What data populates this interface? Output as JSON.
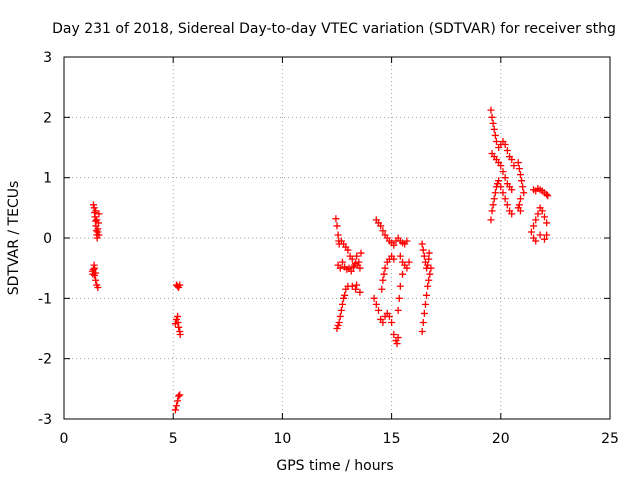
{
  "chart_data": {
    "type": "scatter",
    "title": "Day 231 of 2018, Sidereal Day-to-day VTEC variation (SDTVAR) for receiver sthg",
    "xlabel": "GPS time / hours",
    "ylabel": "SDTVAR / TECUs",
    "xlim": [
      0,
      25
    ],
    "ylim": [
      -3,
      3
    ],
    "xticks": [
      0,
      5,
      10,
      15,
      20,
      25
    ],
    "yticks": [
      -3,
      -2,
      -1,
      0,
      1,
      2,
      3
    ],
    "grid": true,
    "marker": "+",
    "color": "#ff0000",
    "series": [
      {
        "name": "SDTVAR",
        "points": [
          [
            1.35,
            0.55
          ],
          [
            1.38,
            0.5
          ],
          [
            1.4,
            0.42
          ],
          [
            1.42,
            0.35
          ],
          [
            1.44,
            0.28
          ],
          [
            1.46,
            0.2
          ],
          [
            1.48,
            0.12
          ],
          [
            1.5,
            0.05
          ],
          [
            1.52,
            0.0
          ],
          [
            1.55,
            0.1
          ],
          [
            1.58,
            0.25
          ],
          [
            1.6,
            0.4
          ],
          [
            1.45,
            0.45
          ],
          [
            1.5,
            0.3
          ],
          [
            1.55,
            0.15
          ],
          [
            1.6,
            0.05
          ],
          [
            1.3,
            -0.55
          ],
          [
            1.32,
            -0.6
          ],
          [
            1.35,
            -0.52
          ],
          [
            1.38,
            -0.45
          ],
          [
            1.4,
            -0.62
          ],
          [
            1.45,
            -0.7
          ],
          [
            1.5,
            -0.78
          ],
          [
            1.55,
            -0.82
          ],
          [
            1.4,
            -0.5
          ],
          [
            1.45,
            -0.58
          ],
          [
            5.15,
            -0.78
          ],
          [
            5.2,
            -0.8
          ],
          [
            5.25,
            -0.82
          ],
          [
            5.3,
            -0.78
          ],
          [
            5.1,
            -1.42
          ],
          [
            5.15,
            -1.35
          ],
          [
            5.2,
            -1.3
          ],
          [
            5.25,
            -1.48
          ],
          [
            5.3,
            -1.55
          ],
          [
            5.32,
            -1.6
          ],
          [
            5.22,
            -1.4
          ],
          [
            5.1,
            -2.85
          ],
          [
            5.15,
            -2.78
          ],
          [
            5.2,
            -2.7
          ],
          [
            5.25,
            -2.62
          ],
          [
            5.3,
            -2.6
          ],
          [
            12.45,
            0.32
          ],
          [
            12.5,
            0.2
          ],
          [
            12.55,
            0.05
          ],
          [
            12.58,
            -0.05
          ],
          [
            12.6,
            -0.1
          ],
          [
            12.7,
            -0.05
          ],
          [
            12.8,
            -0.1
          ],
          [
            12.9,
            -0.15
          ],
          [
            13.0,
            -0.2
          ],
          [
            13.1,
            -0.3
          ],
          [
            13.2,
            -0.35
          ],
          [
            13.4,
            -0.3
          ],
          [
            13.6,
            -0.25
          ],
          [
            13.5,
            -0.4
          ],
          [
            13.3,
            -0.45
          ],
          [
            12.55,
            -0.45
          ],
          [
            12.65,
            -0.5
          ],
          [
            12.75,
            -0.4
          ],
          [
            12.85,
            -0.48
          ],
          [
            12.95,
            -0.52
          ],
          [
            13.05,
            -0.5
          ],
          [
            13.15,
            -0.55
          ],
          [
            13.25,
            -0.48
          ],
          [
            13.35,
            -0.42
          ],
          [
            13.45,
            -0.45
          ],
          [
            13.55,
            -0.5
          ],
          [
            12.5,
            -1.5
          ],
          [
            12.55,
            -1.45
          ],
          [
            12.6,
            -1.4
          ],
          [
            12.65,
            -1.3
          ],
          [
            12.7,
            -1.2
          ],
          [
            12.75,
            -1.1
          ],
          [
            12.8,
            -1.0
          ],
          [
            12.85,
            -0.95
          ],
          [
            12.9,
            -0.85
          ],
          [
            13.0,
            -0.8
          ],
          [
            13.2,
            -0.8
          ],
          [
            13.4,
            -0.78
          ],
          [
            13.55,
            -0.9
          ],
          [
            13.35,
            -0.85
          ],
          [
            14.3,
            0.3
          ],
          [
            14.4,
            0.25
          ],
          [
            14.5,
            0.2
          ],
          [
            14.6,
            0.12
          ],
          [
            14.7,
            0.05
          ],
          [
            14.8,
            0.0
          ],
          [
            14.9,
            -0.05
          ],
          [
            15.0,
            -0.08
          ],
          [
            15.1,
            -0.12
          ],
          [
            15.2,
            -0.05
          ],
          [
            15.3,
            0.0
          ],
          [
            15.4,
            -0.05
          ],
          [
            15.5,
            -0.08
          ],
          [
            15.6,
            -0.1
          ],
          [
            15.7,
            -0.05
          ],
          [
            14.2,
            -1.0
          ],
          [
            14.3,
            -1.1
          ],
          [
            14.4,
            -1.2
          ],
          [
            14.5,
            -1.35
          ],
          [
            14.6,
            -1.4
          ],
          [
            14.7,
            -1.3
          ],
          [
            14.8,
            -1.25
          ],
          [
            14.9,
            -1.3
          ],
          [
            15.0,
            -1.4
          ],
          [
            15.1,
            -1.6
          ],
          [
            15.2,
            -1.7
          ],
          [
            15.25,
            -1.75
          ],
          [
            15.3,
            -1.65
          ],
          [
            14.55,
            -0.85
          ],
          [
            14.6,
            -0.7
          ],
          [
            14.65,
            -0.6
          ],
          [
            14.7,
            -0.5
          ],
          [
            14.8,
            -0.4
          ],
          [
            14.9,
            -0.35
          ],
          [
            15.0,
            -0.3
          ],
          [
            15.1,
            -0.35
          ],
          [
            15.4,
            -0.3
          ],
          [
            15.5,
            -0.4
          ],
          [
            15.6,
            -0.45
          ],
          [
            15.7,
            -0.5
          ],
          [
            15.8,
            -0.4
          ],
          [
            15.5,
            -0.6
          ],
          [
            15.4,
            -0.8
          ],
          [
            15.35,
            -1.0
          ],
          [
            15.3,
            -1.2
          ],
          [
            16.4,
            -0.1
          ],
          [
            16.45,
            -0.2
          ],
          [
            16.5,
            -0.3
          ],
          [
            16.55,
            -0.4
          ],
          [
            16.6,
            -0.5
          ],
          [
            16.65,
            -0.45
          ],
          [
            16.7,
            -0.35
          ],
          [
            16.72,
            -0.25
          ],
          [
            16.4,
            -1.55
          ],
          [
            16.45,
            -1.4
          ],
          [
            16.5,
            -1.25
          ],
          [
            16.55,
            -1.1
          ],
          [
            16.6,
            -0.95
          ],
          [
            16.65,
            -0.8
          ],
          [
            16.7,
            -0.7
          ],
          [
            16.75,
            -0.6
          ],
          [
            16.8,
            -0.5
          ],
          [
            19.55,
            2.12
          ],
          [
            19.6,
            2.0
          ],
          [
            19.65,
            1.9
          ],
          [
            19.7,
            1.8
          ],
          [
            19.75,
            1.7
          ],
          [
            19.8,
            1.6
          ],
          [
            19.9,
            1.5
          ],
          [
            20.0,
            1.55
          ],
          [
            20.1,
            1.6
          ],
          [
            20.2,
            1.55
          ],
          [
            20.3,
            1.45
          ],
          [
            20.4,
            1.35
          ],
          [
            20.5,
            1.3
          ],
          [
            20.6,
            1.2
          ],
          [
            19.6,
            1.4
          ],
          [
            19.7,
            1.35
          ],
          [
            19.8,
            1.3
          ],
          [
            19.9,
            1.25
          ],
          [
            20.0,
            1.2
          ],
          [
            20.1,
            1.1
          ],
          [
            20.2,
            1.0
          ],
          [
            20.3,
            0.9
          ],
          [
            20.4,
            0.85
          ],
          [
            20.5,
            0.8
          ],
          [
            19.55,
            0.3
          ],
          [
            19.6,
            0.45
          ],
          [
            19.65,
            0.55
          ],
          [
            19.7,
            0.65
          ],
          [
            19.75,
            0.75
          ],
          [
            19.8,
            0.85
          ],
          [
            19.85,
            0.9
          ],
          [
            19.9,
            0.95
          ],
          [
            20.0,
            0.85
          ],
          [
            20.1,
            0.75
          ],
          [
            20.2,
            0.65
          ],
          [
            20.3,
            0.55
          ],
          [
            20.4,
            0.45
          ],
          [
            20.5,
            0.4
          ],
          [
            20.8,
            1.25
          ],
          [
            20.85,
            1.15
          ],
          [
            20.9,
            1.05
          ],
          [
            20.95,
            0.95
          ],
          [
            21.0,
            0.85
          ],
          [
            21.05,
            0.75
          ],
          [
            20.9,
            0.65
          ],
          [
            20.85,
            0.55
          ],
          [
            20.8,
            0.5
          ],
          [
            20.9,
            0.45
          ],
          [
            21.5,
            0.8
          ],
          [
            21.6,
            0.78
          ],
          [
            21.7,
            0.82
          ],
          [
            21.8,
            0.8
          ],
          [
            21.9,
            0.78
          ],
          [
            22.0,
            0.75
          ],
          [
            22.1,
            0.72
          ],
          [
            22.15,
            0.7
          ],
          [
            21.4,
            0.1
          ],
          [
            21.5,
            0.2
          ],
          [
            21.6,
            0.3
          ],
          [
            21.7,
            0.4
          ],
          [
            21.8,
            0.5
          ],
          [
            21.9,
            0.45
          ],
          [
            22.0,
            0.35
          ],
          [
            22.1,
            0.25
          ],
          [
            21.5,
            0.0
          ],
          [
            21.6,
            -0.05
          ],
          [
            21.8,
            0.05
          ],
          [
            22.0,
            -0.02
          ],
          [
            22.1,
            0.05
          ]
        ]
      }
    ]
  }
}
